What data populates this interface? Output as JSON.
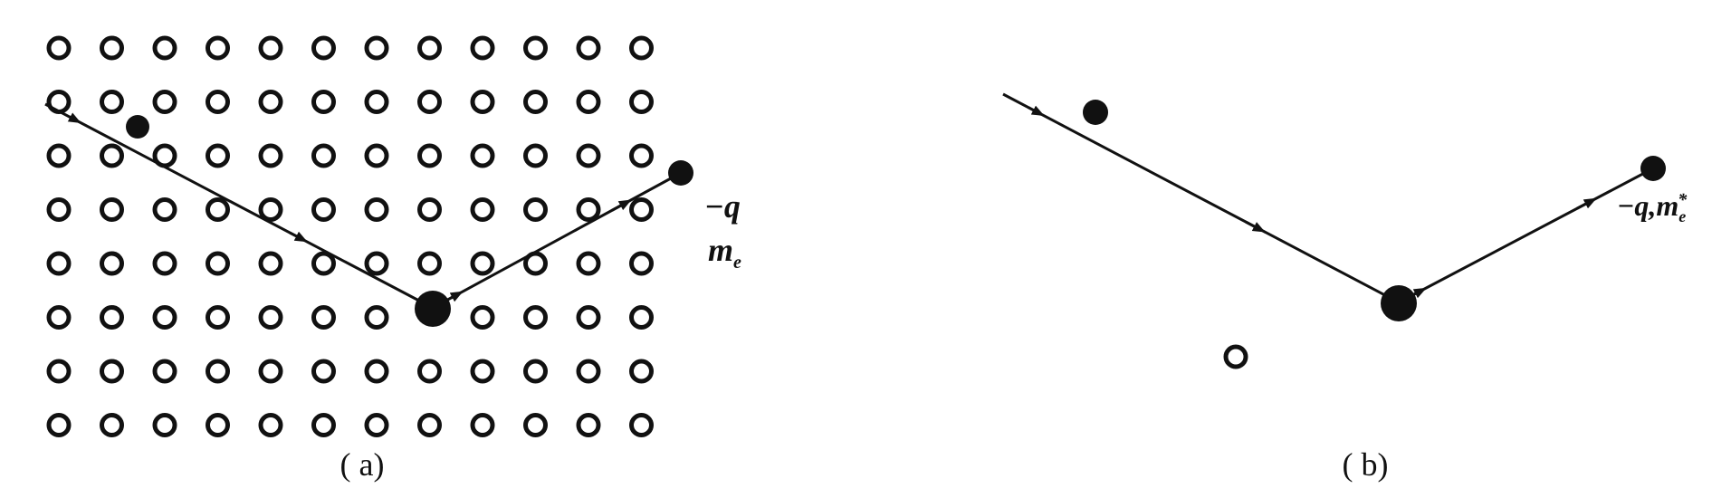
{
  "colors": {
    "ink": "#111111",
    "background": "#ffffff"
  },
  "panel_a": {
    "caption": "( a)",
    "charge_label": "−q",
    "mass_label": "m",
    "mass_subscript": "e",
    "lattice_rows": 8,
    "lattice_cols": 12
  },
  "panel_b": {
    "caption": "( b)",
    "charge_mass_label": "−q,m",
    "mass_subscript": "e",
    "mass_superscript": "*"
  }
}
